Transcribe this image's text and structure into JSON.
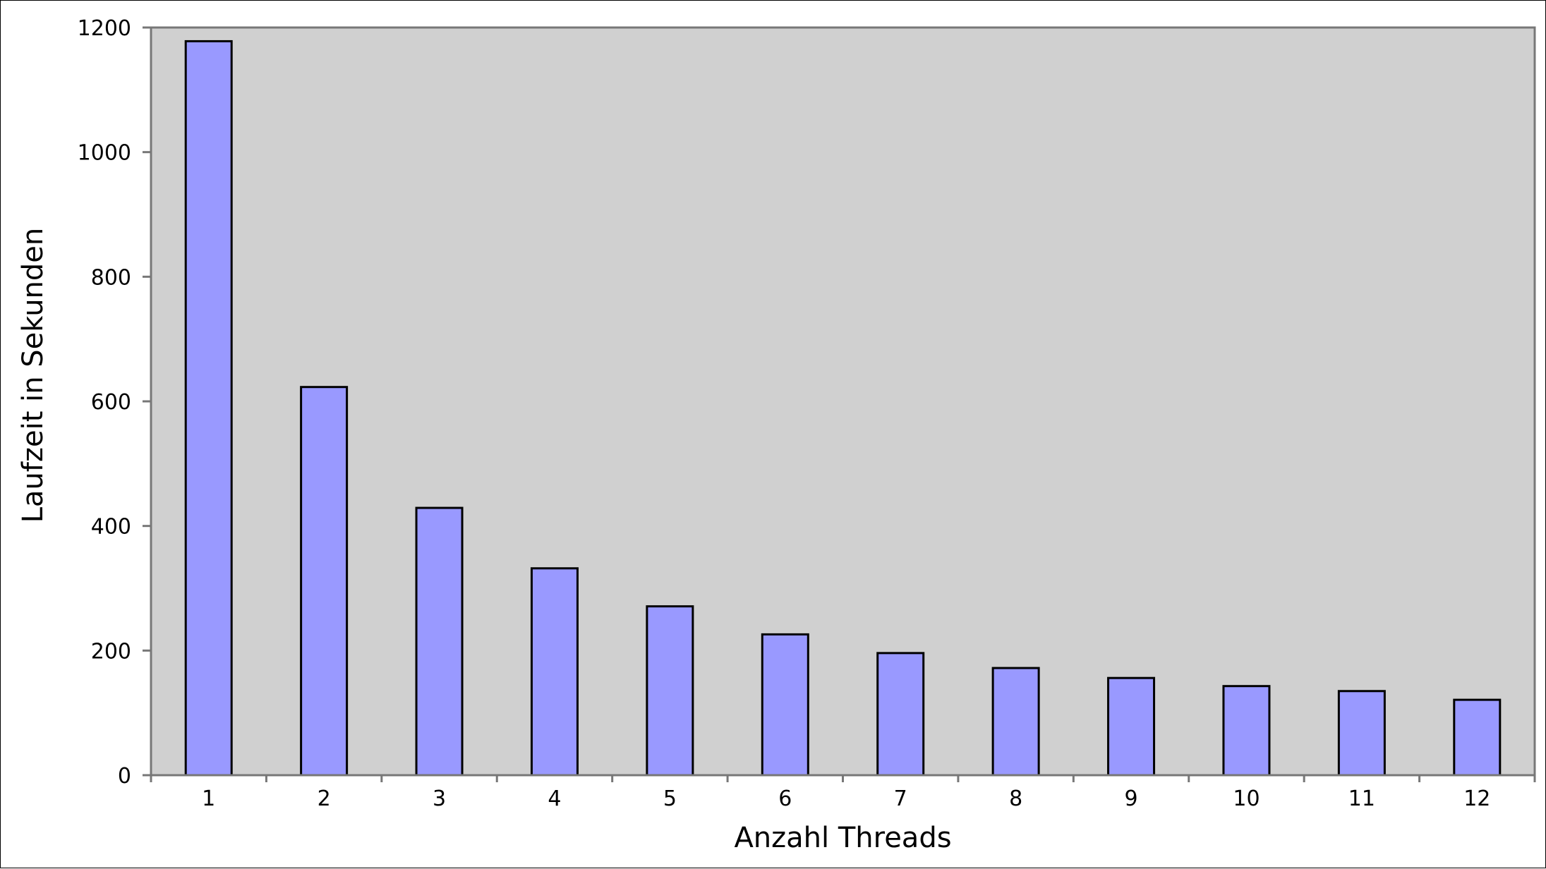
{
  "chart_data": {
    "type": "bar",
    "title": "",
    "xlabel": "Anzahl Threads",
    "ylabel": "Laufzeit in Sekunden",
    "categories": [
      "1",
      "2",
      "3",
      "4",
      "5",
      "6",
      "7",
      "8",
      "9",
      "10",
      "11",
      "12"
    ],
    "values": [
      1178,
      623,
      429,
      332,
      271,
      226,
      196,
      172,
      156,
      143,
      135,
      121
    ],
    "ylim": [
      0,
      1200
    ],
    "yticks": [
      "0",
      "200",
      "400",
      "600",
      "800",
      "1000",
      "1200"
    ],
    "grid": false,
    "legend": "none",
    "colors": {
      "bar": "#9999ff",
      "bar_edge": "#000000",
      "plot_bg": "#d0d0d0",
      "axis": "#777777"
    }
  }
}
